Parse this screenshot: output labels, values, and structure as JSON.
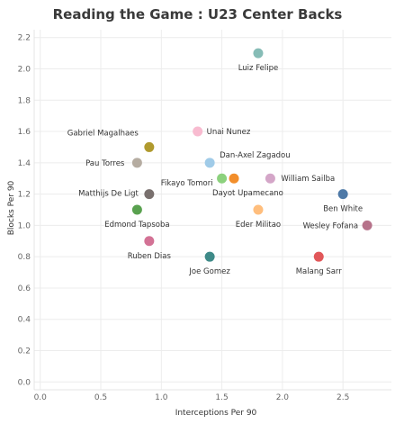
{
  "chart_data": {
    "type": "scatter",
    "title": "Reading the Game : U23 Center Backs",
    "xlabel": "Interceptions Per 90",
    "ylabel": "Blocks Per 90",
    "xlim": [
      -0.05,
      2.9
    ],
    "ylim": [
      -0.05,
      2.25
    ],
    "xticks": [
      "0.0",
      "0.5",
      "1.0",
      "1.5",
      "2.0",
      "2.5"
    ],
    "yticks": [
      "0.0",
      "0.2",
      "0.4",
      "0.6",
      "0.8",
      "1.0",
      "1.2",
      "1.4",
      "1.6",
      "1.8",
      "2.0",
      "2.2"
    ],
    "grid": true,
    "points": [
      {
        "label": "Luiz Felipe",
        "x": 1.8,
        "y": 2.1,
        "color": "#86bcb6"
      },
      {
        "label": "Unai Nunez",
        "x": 1.3,
        "y": 1.6,
        "color": "#f8bbd0"
      },
      {
        "label": "Gabriel Magalhaes",
        "x": 0.9,
        "y": 1.5,
        "color": "#b09a2e"
      },
      {
        "label": "Dan-Axel Zagadou",
        "x": 1.4,
        "y": 1.4,
        "color": "#a0cbe8"
      },
      {
        "label": "Pau Torres",
        "x": 0.8,
        "y": 1.4,
        "color": "#b5aca1"
      },
      {
        "label": "Fikayo Tomori",
        "x": 1.5,
        "y": 1.3,
        "color": "#8cd17d"
      },
      {
        "label": "Dayot Upamecano",
        "x": 1.6,
        "y": 1.3,
        "color": "#f28e2b"
      },
      {
        "label": "William Sailba",
        "x": 1.9,
        "y": 1.3,
        "color": "#d4a6c8"
      },
      {
        "label": "Matthijs De Ligt",
        "x": 0.9,
        "y": 1.2,
        "color": "#79706e"
      },
      {
        "label": "Ben White",
        "x": 2.5,
        "y": 1.2,
        "color": "#4e79a7"
      },
      {
        "label": "Edmond Tapsoba",
        "x": 0.8,
        "y": 1.1,
        "color": "#59a14f"
      },
      {
        "label": "Eder Militao",
        "x": 1.8,
        "y": 1.1,
        "color": "#ffbe7d"
      },
      {
        "label": "Wesley Fofana",
        "x": 2.7,
        "y": 1.0,
        "color": "#b6728a"
      },
      {
        "label": "Ruben Dias",
        "x": 0.9,
        "y": 0.9,
        "color": "#d37295"
      },
      {
        "label": "Joe Gomez",
        "x": 1.4,
        "y": 0.8,
        "color": "#3e8a88"
      },
      {
        "label": "Malang Sarr",
        "x": 2.3,
        "y": 0.8,
        "color": "#e15759"
      }
    ]
  }
}
